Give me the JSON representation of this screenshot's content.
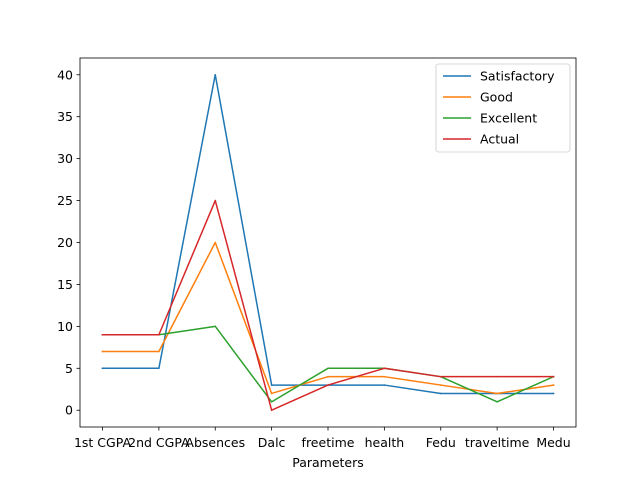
{
  "chart_data": {
    "type": "line",
    "title": "",
    "xlabel": "Parameters",
    "ylabel": "",
    "ylim": [
      -2,
      42
    ],
    "yticks": [
      0,
      5,
      10,
      15,
      20,
      25,
      30,
      35,
      40
    ],
    "grid": false,
    "legend_position": "top-right",
    "categories": [
      "1st CGPA",
      "2nd CGPA",
      "Absences",
      "Dalc",
      "freetime",
      "health",
      "Fedu",
      "traveltime",
      "Medu"
    ],
    "series": [
      {
        "name": "Satisfactory",
        "color": "#1f77b4",
        "values": [
          5,
          5,
          40,
          3,
          3,
          3,
          2,
          2,
          2
        ]
      },
      {
        "name": "Good",
        "color": "#ff7f0e",
        "values": [
          7,
          7,
          20,
          2,
          4,
          4,
          3,
          2,
          3
        ]
      },
      {
        "name": "Excellent",
        "color": "#2ca02c",
        "values": [
          9,
          9,
          10,
          1,
          5,
          5,
          4,
          1,
          4
        ]
      },
      {
        "name": "Actual",
        "color": "#d62728",
        "values": [
          9,
          9,
          25,
          0,
          3,
          5,
          4,
          4,
          4
        ]
      }
    ]
  }
}
